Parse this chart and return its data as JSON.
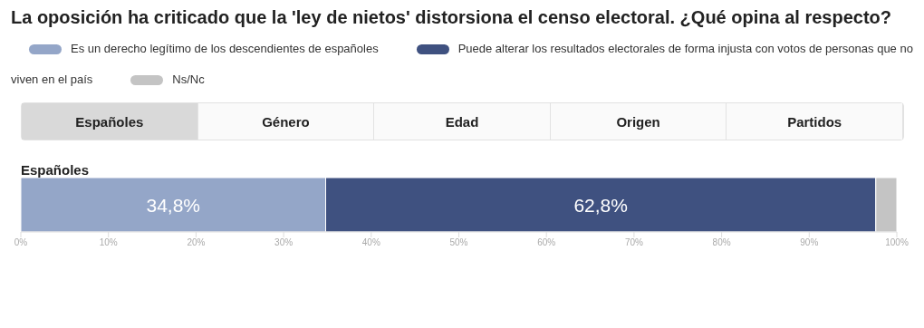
{
  "chart_data": {
    "type": "bar",
    "orientation": "horizontal",
    "stacked": true,
    "title": "La oposición ha criticado que la 'ley de nietos' distorsiona el censo electoral. ¿Qué opina al respecto?",
    "annotations": [
      "Españoles",
      "Género",
      "Edad",
      "Origen",
      "Partidos"
    ],
    "categories": [
      "Españoles"
    ],
    "series": [
      {
        "name": "Es un derecho legítimo de los descendientes de españoles",
        "color": "#94a6c8",
        "values": [
          34.8
        ],
        "value_labels": [
          "34,8%"
        ]
      },
      {
        "name": "Puede alterar los resultados electorales de forma injusta con votos de personas que no viven en el país",
        "color": "#3f5180",
        "values": [
          62.8
        ],
        "value_labels": [
          "62,8%"
        ]
      },
      {
        "name": "Ns/Nc",
        "color": "#c4c4c4",
        "values": [
          2.4
        ],
        "value_labels": [
          null
        ]
      }
    ],
    "xlim": [
      0,
      100
    ],
    "xticks": [
      {
        "value": 0,
        "label": "0%"
      },
      {
        "value": 10,
        "label": "10%"
      },
      {
        "value": 20,
        "label": "20%"
      },
      {
        "value": 30,
        "label": "30%"
      },
      {
        "value": 40,
        "label": "40%"
      },
      {
        "value": 50,
        "label": "50%"
      },
      {
        "value": 60,
        "label": "60%"
      },
      {
        "value": 70,
        "label": "70%"
      },
      {
        "value": 80,
        "label": "80%"
      },
      {
        "value": 90,
        "label": "90%"
      },
      {
        "value": 100,
        "label": "100%"
      }
    ],
    "legend": "top",
    "grid": false
  }
}
